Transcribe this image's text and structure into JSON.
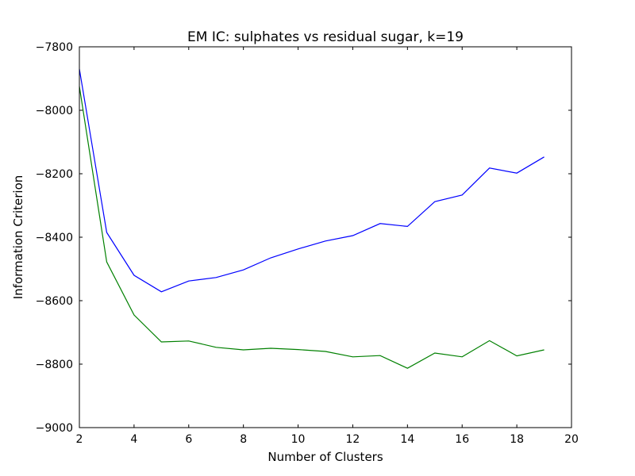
{
  "chart_data": {
    "type": "line",
    "title": "EM IC: sulphates vs residual sugar, k=19",
    "xlabel": "Number of Clusters",
    "ylabel": "Information Criterion",
    "xlim": [
      2,
      20
    ],
    "ylim": [
      -9000,
      -7800
    ],
    "xticks": [
      2,
      4,
      6,
      8,
      10,
      12,
      14,
      16,
      18,
      20
    ],
    "yticks": [
      -9000,
      -8800,
      -8600,
      -8400,
      -8200,
      -8000,
      -7800
    ],
    "grid": false,
    "x": [
      2,
      3,
      4,
      5,
      6,
      7,
      8,
      9,
      10,
      11,
      12,
      13,
      14,
      15,
      16,
      17,
      18,
      19
    ],
    "series": [
      {
        "color": "#0000ff",
        "values": [
          -7870,
          -8385,
          -8520,
          -8572,
          -8538,
          -8527,
          -8503,
          -8465,
          -8437,
          -8412,
          -8395,
          -8357,
          -8366,
          -8288,
          -8267,
          -8182,
          -8198,
          -8147
        ]
      },
      {
        "color": "#008000",
        "values": [
          -7925,
          -8478,
          -8645,
          -8730,
          -8727,
          -8747,
          -8755,
          -8750,
          -8754,
          -8760,
          -8777,
          -8773,
          -8813,
          -8765,
          -8777,
          -8726,
          -8774,
          -8755
        ]
      }
    ]
  }
}
